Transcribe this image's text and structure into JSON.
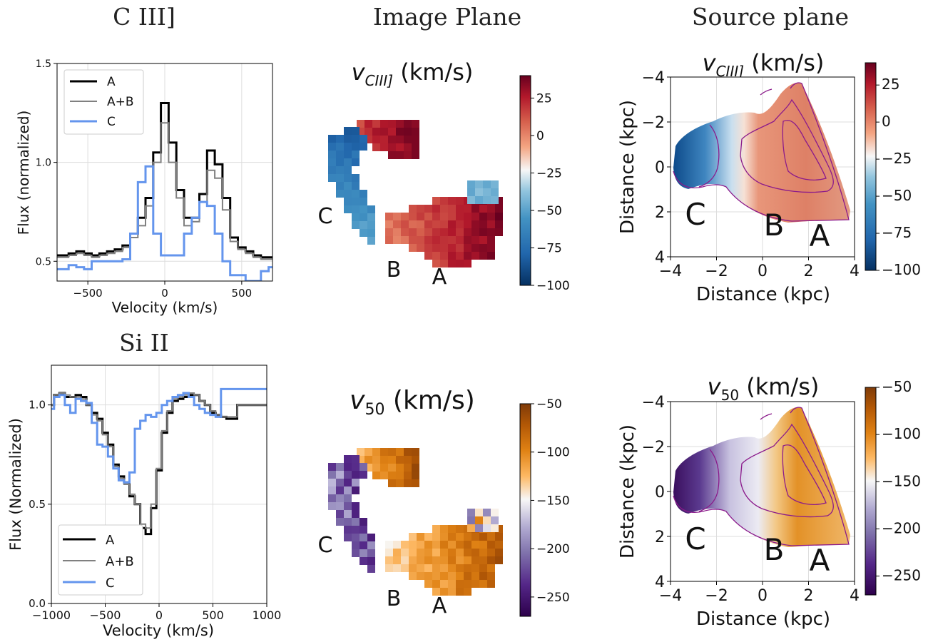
{
  "headers": {
    "col1": "C III]",
    "col2": "Image Plane",
    "col3": "Source plane",
    "row2_col1": "Si II"
  },
  "colors": {
    "A": "#000000",
    "AB": "#808080",
    "C": "#6495ed",
    "contour": "#8b1a8b",
    "grid": "#dddddd"
  },
  "chart_data": [
    {
      "id": "ciii-spectrum",
      "type": "line",
      "xlabel": "Velocity (km/s)",
      "ylabel": "Flux (normalized)",
      "xlim": [
        -700,
        700
      ],
      "ylim": [
        0.4,
        1.5
      ],
      "xticks": [
        -500,
        0,
        500
      ],
      "yticks": [
        0.5,
        1.0,
        1.5
      ],
      "xtick_labels": [
        "−500",
        "0",
        "500"
      ],
      "ytick_labels": [
        "0.5",
        "1.0",
        "1.5"
      ],
      "legend_position": "top-left",
      "legend": [
        "A",
        "A+B",
        "C"
      ],
      "x": [
        -700,
        -650,
        -600,
        -550,
        -500,
        -450,
        -400,
        -350,
        -300,
        -250,
        -200,
        -150,
        -100,
        -50,
        0,
        50,
        100,
        150,
        200,
        250,
        300,
        350,
        400,
        450,
        500,
        550,
        600,
        650,
        700
      ],
      "series": [
        {
          "name": "A",
          "values": [
            0.53,
            0.53,
            0.54,
            0.55,
            0.54,
            0.53,
            0.54,
            0.55,
            0.56,
            0.58,
            0.64,
            0.72,
            0.82,
            1.05,
            1.3,
            1.1,
            0.86,
            0.72,
            0.72,
            0.84,
            1.06,
            0.99,
            0.82,
            0.62,
            0.57,
            0.55,
            0.53,
            0.52,
            0.52
          ]
        },
        {
          "name": "A+B",
          "values": [
            0.52,
            0.52,
            0.53,
            0.54,
            0.53,
            0.52,
            0.53,
            0.54,
            0.55,
            0.57,
            0.62,
            0.68,
            0.78,
            1.0,
            1.2,
            1.0,
            0.82,
            0.68,
            0.7,
            0.8,
            0.96,
            0.92,
            0.76,
            0.6,
            0.56,
            0.54,
            0.52,
            0.51,
            0.51
          ]
        },
        {
          "name": "C",
          "values": [
            0.46,
            0.46,
            0.48,
            0.47,
            0.46,
            0.5,
            0.5,
            0.5,
            0.5,
            0.51,
            0.64,
            0.9,
            0.98,
            0.64,
            0.53,
            0.53,
            0.53,
            0.64,
            0.72,
            0.8,
            0.78,
            0.64,
            0.5,
            0.43,
            0.43,
            0.4,
            0.4,
            0.45,
            0.47
          ]
        }
      ]
    },
    {
      "id": "siii-spectrum",
      "type": "line",
      "xlabel": "Velocity (km/s)",
      "ylabel": "Flux (Normalized)",
      "xlim": [
        -1000,
        1000
      ],
      "ylim": [
        0.0,
        1.2
      ],
      "xticks": [
        -1000,
        -500,
        0,
        500,
        1000
      ],
      "yticks": [
        0.0,
        0.5,
        1.0
      ],
      "xtick_labels": [
        "−1000",
        "−500",
        "0",
        "500",
        "1000"
      ],
      "ytick_labels": [
        "0.0",
        "0.5",
        "1.0"
      ],
      "legend_position": "bottom-left",
      "legend": [
        "A",
        "A+B",
        "C"
      ],
      "x": [
        -1000,
        -950,
        -900,
        -850,
        -800,
        -750,
        -700,
        -650,
        -600,
        -550,
        -500,
        -450,
        -400,
        -350,
        -300,
        -250,
        -200,
        -150,
        -100,
        -50,
        0,
        50,
        100,
        150,
        200,
        250,
        300,
        350,
        400,
        450,
        500,
        550,
        600,
        650,
        700,
        750,
        800,
        850,
        900,
        950,
        1000
      ],
      "series": [
        {
          "name": "A",
          "values": [
            1.0,
            1.05,
            1.06,
            1.04,
            1.04,
            1.05,
            1.04,
            1.0,
            0.96,
            0.93,
            0.86,
            0.8,
            0.7,
            0.64,
            0.61,
            0.54,
            0.5,
            0.38,
            0.35,
            0.48,
            0.67,
            0.86,
            0.96,
            1.02,
            1.03,
            1.04,
            1.05,
            1.05,
            1.02,
            1.0,
            0.96,
            0.95,
            0.94,
            0.93,
            0.93,
            1.0,
            1.0,
            1.0,
            1.0,
            1.0,
            1.0
          ]
        },
        {
          "name": "A+B",
          "values": [
            1.0,
            1.05,
            1.06,
            1.05,
            1.04,
            1.04,
            1.03,
            1.0,
            0.95,
            0.92,
            0.85,
            0.79,
            0.69,
            0.63,
            0.6,
            0.55,
            0.5,
            0.4,
            0.38,
            0.5,
            0.68,
            0.87,
            0.97,
            1.03,
            1.04,
            1.05,
            1.06,
            1.05,
            1.02,
            1.0,
            0.97,
            0.95,
            0.94,
            0.94,
            0.94,
            1.0,
            1.0,
            1.0,
            1.0,
            1.0,
            1.0
          ]
        },
        {
          "name": "C",
          "values": [
            0.98,
            1.04,
            1.05,
            1.0,
            0.96,
            1.03,
            1.02,
            1.01,
            0.91,
            0.8,
            0.79,
            0.74,
            0.68,
            0.62,
            0.61,
            0.66,
            0.88,
            0.92,
            0.95,
            0.94,
            0.96,
            1.0,
            1.02,
            1.04,
            1.05,
            1.06,
            1.04,
            1.0,
            0.98,
            0.96,
            0.95,
            0.94,
            1.08,
            1.08,
            1.08,
            1.08,
            1.08,
            1.08,
            1.08,
            1.08,
            1.08
          ]
        }
      ]
    },
    {
      "id": "image-vciii",
      "type": "heatmap",
      "title_main": "v",
      "title_sub": "CIII]",
      "title_units": " (km/s)",
      "colormap": "RdBu_r",
      "clim": [
        -100,
        40
      ],
      "cbar_ticks": [
        25,
        0,
        -25,
        -50,
        -75,
        -100
      ],
      "cbar_labels": [
        "25",
        "0",
        "−25",
        "−50",
        "−75",
        "−100"
      ],
      "labels": [
        "C",
        "B",
        "A"
      ]
    },
    {
      "id": "source-vciii",
      "type": "heatmap",
      "title_main": "v",
      "title_sub": "CIII]",
      "title_units": " (km/s)",
      "colormap": "RdBu_r",
      "clim": [
        -100,
        40
      ],
      "xlim": [
        -4,
        4
      ],
      "ylim": [
        4,
        -4
      ],
      "xticks": [
        -4,
        -2,
        0,
        2,
        4
      ],
      "yticks": [
        -4,
        -2,
        0,
        2,
        4
      ],
      "xtick_labels": [
        "−4",
        "−2",
        "0",
        "2",
        "4"
      ],
      "ytick_labels": [
        "−4",
        "−2",
        "0",
        "2",
        "4"
      ],
      "xlabel": "Distance (kpc)",
      "ylabel": "Distance (kpc)",
      "cbar_ticks": [
        25,
        0,
        -25,
        -50,
        -75,
        -100
      ],
      "cbar_labels": [
        "25",
        "0",
        "−25",
        "−50",
        "−75",
        "−100"
      ],
      "labels": [
        "C",
        "B",
        "A"
      ]
    },
    {
      "id": "image-v50",
      "type": "heatmap",
      "title_main": "v",
      "title_sub": "50",
      "title_units": " (km/s)",
      "colormap": "PuOr_r",
      "clim": [
        -270,
        -50
      ],
      "cbar_ticks": [
        -50,
        -100,
        -150,
        -200,
        -250
      ],
      "cbar_labels": [
        "−50",
        "−100",
        "−150",
        "−200",
        "−250"
      ],
      "labels": [
        "C",
        "B",
        "A"
      ]
    },
    {
      "id": "source-v50",
      "type": "heatmap",
      "title_main": "v",
      "title_sub": "50",
      "title_units": " (km/s)",
      "colormap": "PuOr_r",
      "clim": [
        -270,
        -50
      ],
      "xlim": [
        -4,
        4
      ],
      "ylim": [
        4,
        -4
      ],
      "xticks": [
        -4,
        -2,
        0,
        2,
        4
      ],
      "yticks": [
        -4,
        -2,
        0,
        2,
        4
      ],
      "xtick_labels": [
        "−4",
        "−2",
        "0",
        "2",
        "4"
      ],
      "ytick_labels": [
        "−4",
        "−2",
        "0",
        "2",
        "4"
      ],
      "xlabel": "Distance (kpc)",
      "ylabel": "Distance (kpc)",
      "cbar_ticks": [
        -50,
        -100,
        -150,
        -200,
        -250
      ],
      "cbar_labels": [
        "−50",
        "−100",
        "−150",
        "−200",
        "−250"
      ],
      "labels": [
        "C",
        "B",
        "A"
      ]
    }
  ]
}
